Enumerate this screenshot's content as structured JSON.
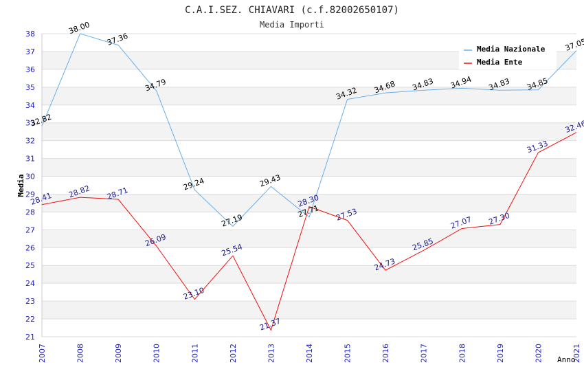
{
  "chart_data": {
    "type": "line",
    "title": "C.A.I.SEZ. CHIAVARI (c.f.82002650107)",
    "subtitle": "Media Importi",
    "xlabel": "Anno",
    "ylabel": "Media",
    "x": [
      "2007",
      "2008",
      "2009",
      "2010",
      "2011",
      "2012",
      "2013",
      "2014",
      "2015",
      "2016",
      "2017",
      "2018",
      "2019",
      "2020",
      "2021"
    ],
    "ylim": [
      21,
      38
    ],
    "yticks": [
      "21",
      "22",
      "23",
      "24",
      "25",
      "26",
      "27",
      "28",
      "29",
      "30",
      "31",
      "32",
      "33",
      "34",
      "35",
      "36",
      "37",
      "38"
    ],
    "grid": true,
    "legend": "top-right",
    "series": [
      {
        "name": "Media Nazionale",
        "color": "#6aaee8",
        "label_color": "#000000",
        "values": [
          32.82,
          38.0,
          37.36,
          34.79,
          29.24,
          27.19,
          29.43,
          27.71,
          34.32,
          34.68,
          34.83,
          34.94,
          34.83,
          34.85,
          37.05
        ],
        "labels": [
          "32.82",
          "38.00",
          "37.36",
          "34.79",
          "29.24",
          "27.19",
          "29.43",
          "27.71",
          "34.32",
          "34.68",
          "34.83",
          "34.94",
          "34.83",
          "34.85",
          "37.05"
        ]
      },
      {
        "name": "Media Ente",
        "color": "#ee1111",
        "label_color": "#1a1a8c",
        "values": [
          28.41,
          28.82,
          28.71,
          26.09,
          23.1,
          25.54,
          21.37,
          28.3,
          27.53,
          24.73,
          25.85,
          27.07,
          27.3,
          31.33,
          32.46
        ],
        "labels": [
          "28.41",
          "28.82",
          "28.71",
          "26.09",
          "23.10",
          "25.54",
          "21.37",
          "28.30",
          "27.53",
          "24.73",
          "25.85",
          "27.07",
          "27.30",
          "31.33",
          "32.46"
        ]
      }
    ]
  }
}
